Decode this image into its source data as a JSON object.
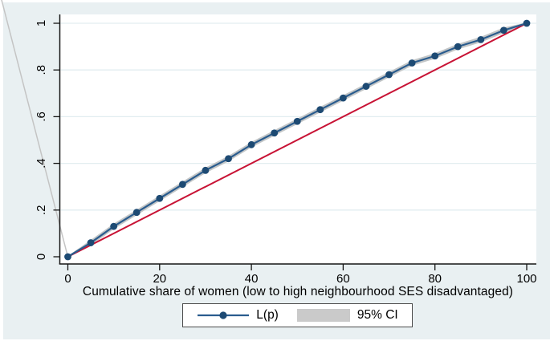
{
  "figure": {
    "bg_color": "#e9f0f2",
    "plot_bg_color": "#ffffff",
    "grid_color": "#e2edf0",
    "axis_color": "#151515",
    "text_color": "#000000",
    "stray_diagonal_line_color": "#c4c4c4",
    "legend_border_color": "#4a4a4a",
    "legend_swatch_color": "#cacaca"
  },
  "chart_data": {
    "type": "line",
    "title": "",
    "xlabel": "Cumulative share of women (low to high neighbourhood SES disadvantaged)",
    "ylabel": "",
    "xlim": [
      0,
      100
    ],
    "ylim": [
      0,
      1
    ],
    "grid": "horizontal-only",
    "xticks": {
      "values": [
        0,
        20,
        40,
        60,
        80,
        100
      ],
      "labels": [
        "0",
        "20",
        "40",
        "60",
        "80",
        "100"
      ]
    },
    "yticks": {
      "values": [
        0,
        0.2,
        0.4,
        0.6,
        0.8,
        1
      ],
      "labels": [
        "0",
        ".2",
        ".4",
        ".6",
        ".8",
        "1"
      ]
    },
    "x": [
      0,
      5,
      10,
      15,
      20,
      25,
      30,
      35,
      40,
      45,
      50,
      55,
      60,
      65,
      70,
      75,
      80,
      85,
      90,
      95,
      100
    ],
    "series": [
      {
        "name": "L(p)",
        "type": "line-with-markers",
        "line_color": "#2a5c8e",
        "marker_color": "#1d4a73",
        "y": [
          0,
          0.06,
          0.13,
          0.19,
          0.25,
          0.31,
          0.37,
          0.42,
          0.48,
          0.53,
          0.58,
          0.63,
          0.68,
          0.73,
          0.78,
          0.83,
          0.86,
          0.9,
          0.93,
          0.97,
          1.0
        ]
      },
      {
        "name": "95% CI",
        "type": "confidence-band",
        "color": "#c3c6c7",
        "half_width_value": 0.012
      },
      {
        "name": "line of equality",
        "type": "line",
        "color": "#c81335",
        "x": [
          0,
          100
        ],
        "y": [
          0,
          1
        ]
      }
    ],
    "legend": {
      "position": "bottom-center",
      "entries": [
        "L(p)",
        "95% CI"
      ]
    }
  }
}
